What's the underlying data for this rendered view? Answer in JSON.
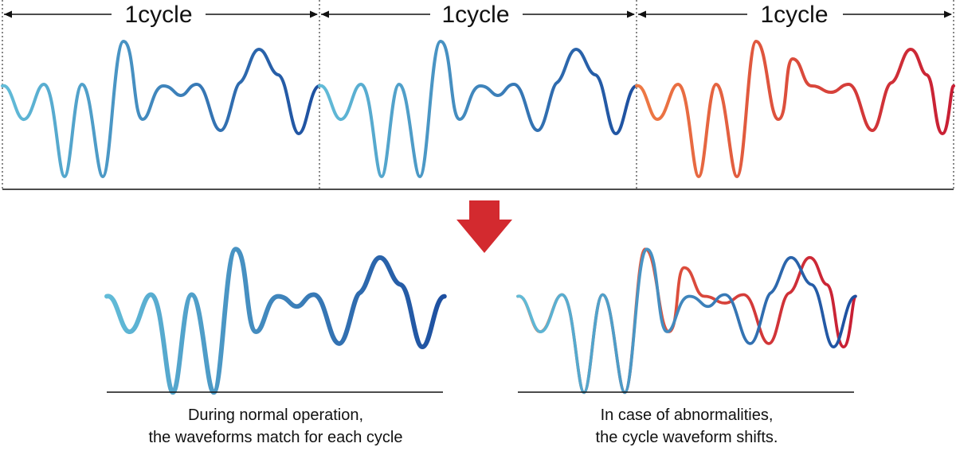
{
  "cycles": [
    {
      "label": "1cycle",
      "state": "normal"
    },
    {
      "label": "1cycle",
      "state": "normal"
    },
    {
      "label": "1cycle",
      "state": "abnormal"
    }
  ],
  "captions": {
    "normal": {
      "line1": "During normal operation,",
      "line2": "the waveforms match for each cycle"
    },
    "abnormal": {
      "line1": "In case of abnormalities,",
      "line2": "the cycle waveform shifts."
    }
  },
  "colors": {
    "normal_start": "#62bcd8",
    "normal_end": "#1d4fa0",
    "abnormal_start": "#ee7a44",
    "abnormal_end": "#c81e34",
    "arrow": "#d32a2f",
    "axis": "#111111"
  },
  "icons": {
    "transition": "down-arrow-icon"
  }
}
